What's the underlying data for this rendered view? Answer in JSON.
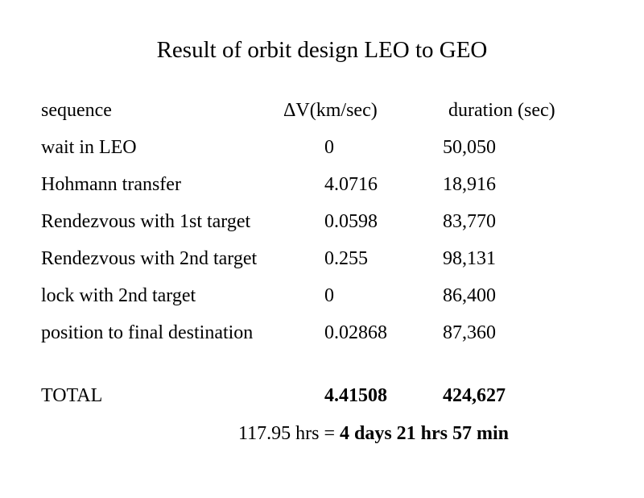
{
  "title": "Result of orbit design LEO to GEO",
  "headers": {
    "sequence": "sequence",
    "dv": "ΔV(km/sec)",
    "duration": "duration (sec)"
  },
  "rows": [
    {
      "sequence": "wait in LEO",
      "dv": "0",
      "duration": "50,050"
    },
    {
      "sequence": "Hohmann transfer",
      "dv": "4.0716",
      "duration": "18,916"
    },
    {
      "sequence": "Rendezvous with 1st target",
      "dv": "0.0598",
      "duration": "83,770"
    },
    {
      "sequence": "Rendezvous with 2nd target",
      "dv": "0.255",
      "duration": "98,131"
    },
    {
      "sequence": "lock with 2nd target",
      "dv": "0",
      "duration": "86,400"
    },
    {
      "sequence": "position to final destination",
      "dv": "0.02868",
      "duration": "87,360"
    }
  ],
  "total": {
    "label": "TOTAL",
    "dv": "4.41508",
    "duration": "424,627"
  },
  "summary": {
    "hours": "117.95 hrs = ",
    "readable": "4 days 21 hrs 57 min"
  }
}
